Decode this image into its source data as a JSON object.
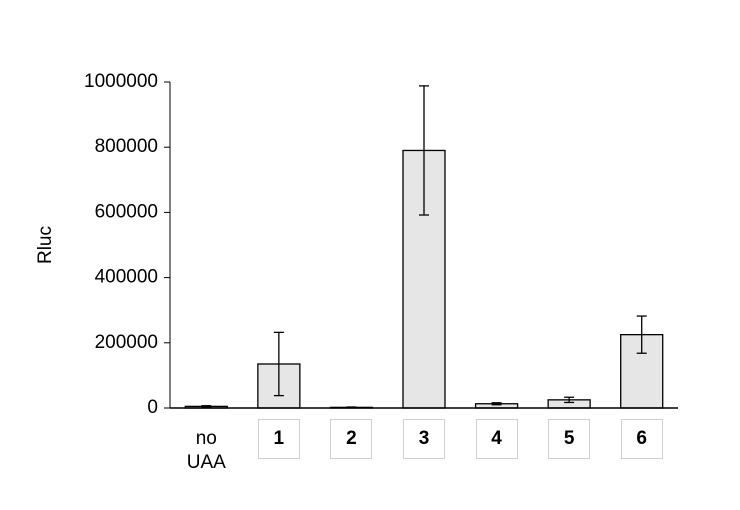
{
  "chart_data": {
    "type": "bar",
    "y_label": "Rluc",
    "categories": [
      "no UAA",
      "1",
      "2",
      "3",
      "4",
      "5",
      "6"
    ],
    "values": [
      5000,
      135000,
      2000,
      790000,
      13000,
      25000,
      225000
    ],
    "errors": [
      2000,
      97000,
      1000,
      198000,
      3000,
      8000,
      57000
    ],
    "color": "#e6e6e6",
    "ylim": [
      0,
      1000000
    ],
    "yticks": [
      0,
      200000,
      400000,
      600000,
      800000,
      1000000
    ],
    "grid": false
  }
}
